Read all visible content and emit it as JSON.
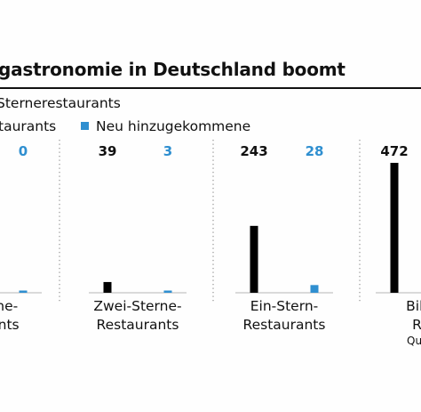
{
  "title": "gastronomie in Deutschland boomt",
  "subtitle": "Sterneresta­urants",
  "legend": {
    "total_label": "taurants",
    "new_label": "Neu hinzugekommene"
  },
  "source": "Qu",
  "colors": {
    "total": "#000000",
    "new": "#2f8fd0",
    "divider": "#9a9a9a"
  },
  "chart_data": {
    "type": "bar",
    "categories": [
      [
        "Sterne-",
        "aurants"
      ],
      [
        "Zwei-Sterne-",
        "Restaurants"
      ],
      [
        "Ein-Stern-",
        "Restaurants"
      ],
      [
        "Bib G",
        "Res"
      ]
    ],
    "series": [
      {
        "name": "taurants",
        "values": [
          null,
          39,
          243,
          472
        ]
      },
      {
        "name": "Neu hinzugekommene",
        "values": [
          0,
          3,
          28,
          null
        ]
      }
    ],
    "value_labels": [
      [
        null,
        "0"
      ],
      [
        "39",
        "3"
      ],
      [
        "243",
        "28"
      ],
      [
        "472",
        null
      ]
    ],
    "ylim": [
      0,
      472
    ],
    "grid": false
  }
}
